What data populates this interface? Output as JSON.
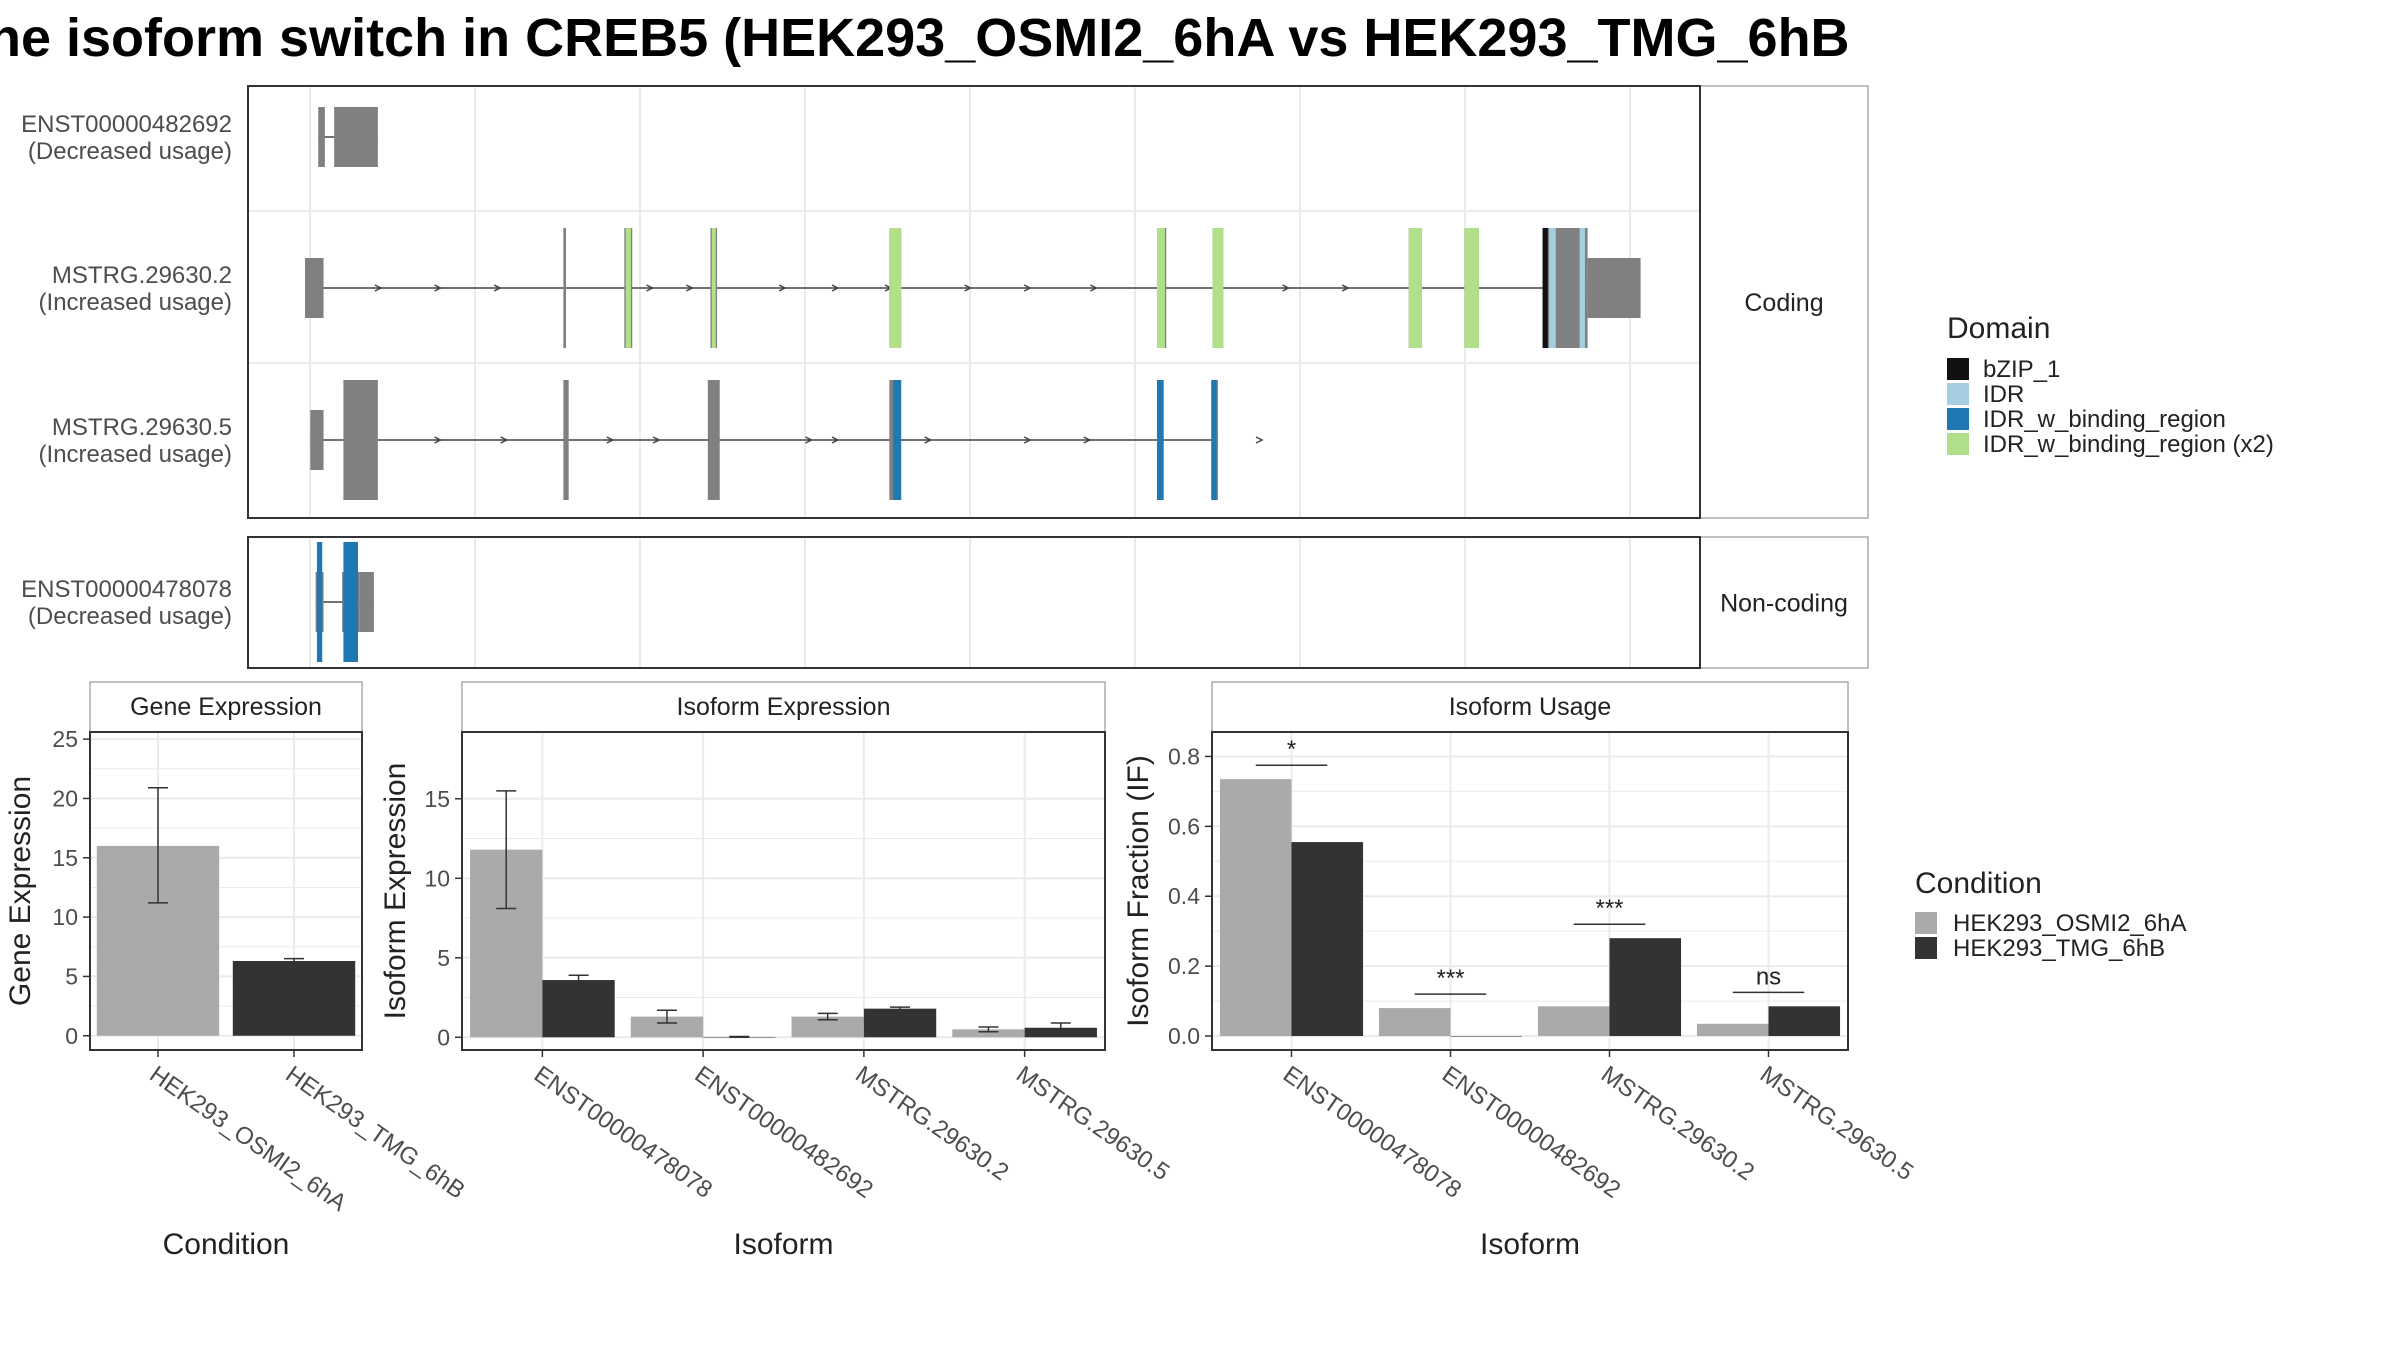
{
  "title": "he isoform switch in CREB5 (HEK293_OSMI2_6hA vs HEK293_TMG_6hB",
  "colors": {
    "background": "#ffffff",
    "panel_border": "#333333",
    "strip_border": "#aaaaaa",
    "strip_fill": "#ffffff",
    "grid": "#ebebeb",
    "exon": "#808080",
    "intron": "#444444",
    "condition_a": "#aaaaaa",
    "condition_b": "#333333",
    "text": "#222222",
    "axis_text": "#4d4d4d"
  },
  "structure": {
    "coord_range": [
      0,
      1000
    ],
    "panels": [
      {
        "label": "Coding",
        "transcripts": [
          {
            "id": "ENST00000482692",
            "note": "(Decreased usage)",
            "exons": [
              {
                "start": 10,
                "end": 15,
                "coding": false
              },
              {
                "start": 22,
                "end": 55,
                "coding": true
              }
            ],
            "domains": [],
            "arrows": []
          },
          {
            "id": "MSTRG.29630.2",
            "note": "(Increased usage)",
            "exons": [
              {
                "start": 0,
                "end": 14,
                "coding": false
              },
              {
                "start": 195,
                "end": 197,
                "coding": true
              },
              {
                "start": 241,
                "end": 247,
                "coding": true
              },
              {
                "start": 306,
                "end": 311,
                "coding": true
              },
              {
                "start": 441,
                "end": 450,
                "coding": true
              },
              {
                "start": 643,
                "end": 650,
                "coding": true
              },
              {
                "start": 685,
                "end": 693,
                "coding": true
              },
              {
                "start": 833,
                "end": 843,
                "coding": true
              },
              {
                "start": 875,
                "end": 886,
                "coding": true
              },
              {
                "start": 934,
                "end": 968,
                "coding": true
              },
              {
                "start": 968,
                "end": 1008,
                "coding": false
              }
            ],
            "domains": [
              {
                "start": 242,
                "end": 246,
                "type": "IDR_w_binding_region (x2)"
              },
              {
                "start": 307,
                "end": 310,
                "type": "IDR_w_binding_region (x2)"
              },
              {
                "start": 441,
                "end": 450,
                "type": "IDR_w_binding_region (x2)"
              },
              {
                "start": 643,
                "end": 649,
                "type": "IDR_w_binding_region (x2)"
              },
              {
                "start": 685,
                "end": 693,
                "type": "IDR_w_binding_region (x2)"
              },
              {
                "start": 833,
                "end": 843,
                "type": "IDR_w_binding_region (x2)"
              },
              {
                "start": 875,
                "end": 886,
                "type": "IDR_w_binding_region (x2)"
              },
              {
                "start": 934,
                "end": 938,
                "type": "bZIP_1"
              },
              {
                "start": 939,
                "end": 944,
                "type": "IDR"
              },
              {
                "start": 962,
                "end": 966,
                "type": "IDR"
              }
            ],
            "arrows": [
              55,
              100,
              145,
              260,
              290,
              360,
              400,
              440,
              500,
              545,
              595,
              740,
              785
            ]
          },
          {
            "id": "MSTRG.29630.5",
            "note": "(Increased usage)",
            "exons": [
              {
                "start": 4,
                "end": 14,
                "coding": false
              },
              {
                "start": 29,
                "end": 55,
                "coding": true
              },
              {
                "start": 195,
                "end": 199,
                "coding": true
              },
              {
                "start": 304,
                "end": 313,
                "coding": true
              },
              {
                "start": 441,
                "end": 449,
                "coding": true
              },
              {
                "start": 643,
                "end": 648,
                "coding": true
              },
              {
                "start": 684,
                "end": 689,
                "coding": true
              }
            ],
            "domains": [
              {
                "start": 444,
                "end": 450,
                "type": "IDR_w_binding_region"
              },
              {
                "start": 643,
                "end": 648,
                "type": "IDR_w_binding_region"
              },
              {
                "start": 684,
                "end": 688,
                "type": "IDR_w_binding_region"
              }
            ],
            "arrows": [
              100,
              150,
              230,
              265,
              380,
              400,
              470,
              545,
              590,
              720
            ]
          }
        ]
      },
      {
        "label": "Non-coding",
        "transcripts": [
          {
            "id": "ENST00000478078",
            "note": "(Decreased usage)",
            "exons": [
              {
                "start": 8,
                "end": 14,
                "coding": false
              },
              {
                "start": 28,
                "end": 41,
                "coding": false
              },
              {
                "start": 41,
                "end": 52,
                "coding": false
              }
            ],
            "domains": [
              {
                "start": 9,
                "end": 13,
                "type": "IDR_w_binding_region"
              },
              {
                "start": 29,
                "end": 40,
                "type": "IDR_w_binding_region"
              }
            ],
            "arrows": []
          }
        ]
      }
    ]
  },
  "legend_domain": {
    "title": "Domain",
    "items": [
      {
        "label": "bZIP_1",
        "color": "#111111"
      },
      {
        "label": "IDR",
        "color": "#a6cee3"
      },
      {
        "label": "IDR_w_binding_region",
        "color": "#1f78b4"
      },
      {
        "label": "IDR_w_binding_region (x2)",
        "color": "#b2df8a"
      }
    ]
  },
  "legend_condition": {
    "title": "Condition",
    "items": [
      {
        "label": "HEK293_OSMI2_6hA",
        "color": "#aaaaaa"
      },
      {
        "label": "HEK293_TMG_6hB",
        "color": "#333333"
      }
    ]
  },
  "chart_data": [
    {
      "type": "bar",
      "title": "Gene Expression",
      "xlabel": "Condition",
      "ylabel": "Gene Expression",
      "categories": [
        "HEK293_OSMI2_6hA",
        "HEK293_TMG_6hB"
      ],
      "values": [
        16,
        6.3
      ],
      "error": [
        [
          11.2,
          20.9
        ],
        [
          6.1,
          6.5
        ]
      ],
      "colors": [
        "#aaaaaa",
        "#333333"
      ],
      "ylim": [
        -1.2,
        25.6
      ],
      "yticks": [
        0,
        5,
        10,
        15,
        20,
        25
      ],
      "grid": true
    },
    {
      "type": "bar",
      "title": "Isoform Expression",
      "xlabel": "Isoform",
      "ylabel": "Isoform Expression",
      "categories": [
        "ENST00000478078",
        "ENST00000482692",
        "MSTRG.29630.2",
        "MSTRG.29630.5"
      ],
      "series": [
        {
          "name": "HEK293_OSMI2_6hA",
          "values": [
            11.8,
            1.3,
            1.3,
            0.5
          ],
          "error": [
            [
              8.1,
              15.5
            ],
            [
              0.9,
              1.7
            ],
            [
              1.1,
              1.5
            ],
            [
              0.35,
              0.65
            ]
          ]
        },
        {
          "name": "HEK293_TMG_6hB",
          "values": [
            3.6,
            0.02,
            1.8,
            0.6
          ],
          "error": [
            [
              3.3,
              3.9
            ],
            [
              0,
              0.05
            ],
            [
              1.7,
              1.9
            ],
            [
              0.3,
              0.9
            ]
          ]
        }
      ],
      "ylim": [
        -0.8,
        19.2
      ],
      "yticks": [
        0,
        5,
        10,
        15
      ],
      "grid": true
    },
    {
      "type": "bar",
      "title": "Isoform Usage",
      "xlabel": "Isoform",
      "ylabel": "Isoform Fraction (IF)",
      "categories": [
        "ENST00000478078",
        "ENST00000482692",
        "MSTRG.29630.2",
        "MSTRG.29630.5"
      ],
      "series": [
        {
          "name": "HEK293_OSMI2_6hA",
          "values": [
            0.735,
            0.08,
            0.085,
            0.035
          ]
        },
        {
          "name": "HEK293_TMG_6hB",
          "values": [
            0.555,
            0.0,
            0.28,
            0.085
          ]
        }
      ],
      "significance": [
        "*",
        "***",
        "***",
        "ns"
      ],
      "significance_y": [
        0.775,
        0.12,
        0.32,
        0.125
      ],
      "ylim": [
        -0.04,
        0.87
      ],
      "yticks": [
        0.0,
        0.2,
        0.4,
        0.6,
        0.8
      ],
      "tick_labels": [
        "0.0",
        "0.2",
        "0.4",
        "0.6",
        "0.8"
      ],
      "grid": true
    }
  ]
}
